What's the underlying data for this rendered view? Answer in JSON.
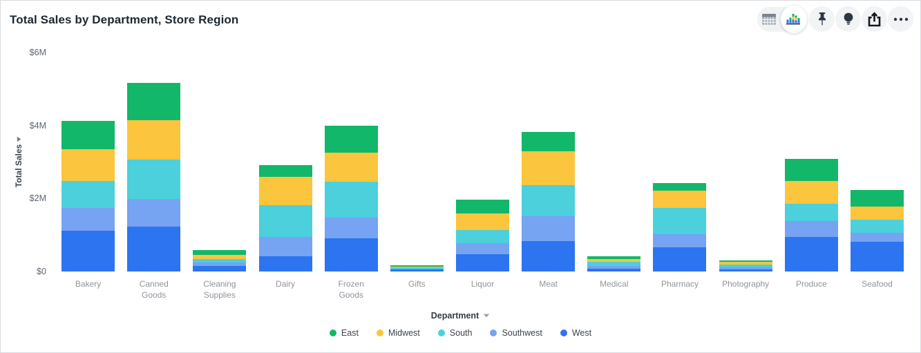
{
  "header": {
    "title": "Total Sales by Department, Store Region",
    "toolbar": {
      "view_toggle": {
        "options": [
          "table-view",
          "chart-view"
        ],
        "selected": "chart-view"
      },
      "buttons": [
        "pin",
        "insights",
        "share",
        "more-options"
      ]
    }
  },
  "chart_data": {
    "type": "bar",
    "stacked": true,
    "title": "Total Sales by Department, Store Region",
    "xlabel": "Department",
    "ylabel": "Total Sales",
    "units": "USD, millions",
    "ylim": [
      0,
      6
    ],
    "grid": false,
    "y_ticks": [
      {
        "value": 0,
        "label": "$0"
      },
      {
        "value": 2,
        "label": "$2M"
      },
      {
        "value": 4,
        "label": "$4M"
      },
      {
        "value": 6,
        "label": "$6M"
      }
    ],
    "categories": [
      "Bakery",
      "Canned Goods",
      "Cleaning Supplies",
      "Dairy",
      "Frozen Goods",
      "Gifts",
      "Liquor",
      "Meat",
      "Medical",
      "Pharmacy",
      "Photography",
      "Produce",
      "Seafood"
    ],
    "category_labels": [
      "Bakery",
      "Canned\nGoods",
      "Cleaning\nSupplies",
      "Dairy",
      "Frozen\nGoods",
      "Gifts",
      "Liquor",
      "Meat",
      "Medical",
      "Pharmacy",
      "Photography",
      "Produce",
      "Seafood"
    ],
    "stack_order": "bottom_to_top",
    "series": [
      {
        "name": "West",
        "color": "#2D74F0",
        "values": [
          1.12,
          1.24,
          0.15,
          0.42,
          0.91,
          0.05,
          0.47,
          0.84,
          0.08,
          0.66,
          0.06,
          0.94,
          0.82
        ]
      },
      {
        "name": "Southwest",
        "color": "#76A3F2",
        "values": [
          0.62,
          0.74,
          0.1,
          0.53,
          0.57,
          0.03,
          0.31,
          0.67,
          0.08,
          0.36,
          0.06,
          0.45,
          0.25
        ]
      },
      {
        "name": "South",
        "color": "#4BD0DC",
        "values": [
          0.74,
          1.09,
          0.1,
          0.86,
          0.98,
          0.03,
          0.35,
          0.86,
          0.1,
          0.72,
          0.07,
          0.46,
          0.36
        ]
      },
      {
        "name": "Midwest",
        "color": "#FBC53D",
        "values": [
          0.87,
          1.08,
          0.1,
          0.78,
          0.79,
          0.03,
          0.47,
          0.92,
          0.08,
          0.48,
          0.08,
          0.62,
          0.35
        ]
      },
      {
        "name": "East",
        "color": "#12B76A",
        "values": [
          0.78,
          1.02,
          0.14,
          0.32,
          0.74,
          0.03,
          0.37,
          0.54,
          0.07,
          0.21,
          0.04,
          0.61,
          0.46
        ]
      }
    ],
    "totals": [
      4.13,
      5.17,
      0.59,
      2.91,
      3.99,
      0.17,
      1.97,
      3.83,
      0.41,
      2.43,
      0.31,
      3.08,
      2.24
    ],
    "legend_order": [
      "East",
      "Midwest",
      "South",
      "Southwest",
      "West"
    ],
    "legend_position": "bottom"
  },
  "colors": {
    "title_text": "#1c2733",
    "axis_tick_text": "#5d6570",
    "category_text": "#8e949c",
    "icon_dark": "#2d3643",
    "toolbar_bg": "#f2f3f5"
  }
}
